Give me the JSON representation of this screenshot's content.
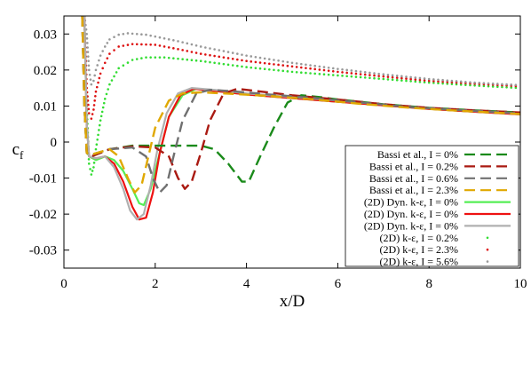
{
  "chart_data": {
    "type": "line",
    "title": "",
    "xlabel": "x/D",
    "ylabel": "c",
    "ylabel_sub": "f",
    "xlim": [
      0,
      10
    ],
    "ylim": [
      -0.035,
      0.035
    ],
    "xticks": [
      0,
      2,
      4,
      6,
      8,
      10
    ],
    "yticks": [
      -0.03,
      -0.02,
      -0.01,
      0,
      0.01,
      0.02,
      0.03
    ],
    "xtick_labels": [
      "0",
      "2",
      "4",
      "6",
      "8",
      "10"
    ],
    "ytick_labels": [
      "-0.03",
      "-0.02",
      "-0.01",
      "0",
      "0.01",
      "0.02",
      "0.03"
    ],
    "grid": false,
    "legend_position": "bottom-right",
    "series": [
      {
        "label": "Bassi et al.,    I = 0%",
        "color": "#1a8a1a",
        "style": "dashed",
        "points": [
          [
            0.4,
            0.035
          ],
          [
            0.45,
            0.01
          ],
          [
            0.5,
            -0.003
          ],
          [
            0.6,
            -0.004
          ],
          [
            1.0,
            -0.002
          ],
          [
            1.5,
            -0.001
          ],
          [
            2.0,
            -0.001
          ],
          [
            2.5,
            -0.001
          ],
          [
            3.0,
            -0.001
          ],
          [
            3.3,
            -0.002
          ],
          [
            3.6,
            -0.006
          ],
          [
            3.9,
            -0.011
          ],
          [
            4.05,
            -0.011
          ],
          [
            4.3,
            -0.004
          ],
          [
            4.6,
            0.004
          ],
          [
            4.9,
            0.011
          ],
          [
            5.2,
            0.013
          ],
          [
            5.6,
            0.0125
          ],
          [
            6,
            0.0118
          ],
          [
            7,
            0.0105
          ],
          [
            8,
            0.0095
          ],
          [
            9,
            0.0088
          ],
          [
            10,
            0.0082
          ]
        ]
      },
      {
        "label": "Bassi et al.,    I = 0.2%",
        "color": "#aa1a12",
        "style": "dashed",
        "points": [
          [
            0.4,
            0.035
          ],
          [
            0.45,
            0.01
          ],
          [
            0.5,
            -0.003
          ],
          [
            0.6,
            -0.004
          ],
          [
            1.0,
            -0.002
          ],
          [
            1.5,
            -0.0012
          ],
          [
            2.0,
            -0.0015
          ],
          [
            2.3,
            -0.004
          ],
          [
            2.5,
            -0.01
          ],
          [
            2.65,
            -0.013
          ],
          [
            2.8,
            -0.011
          ],
          [
            3.0,
            -0.003
          ],
          [
            3.2,
            0.006
          ],
          [
            3.5,
            0.0135
          ],
          [
            3.8,
            0.0148
          ],
          [
            4.2,
            0.0142
          ],
          [
            5,
            0.013
          ],
          [
            6,
            0.0118
          ],
          [
            7,
            0.0105
          ],
          [
            8,
            0.0095
          ],
          [
            9,
            0.0088
          ],
          [
            10,
            0.0082
          ]
        ]
      },
      {
        "label": "Bassi et al.,    I = 0.6%",
        "color": "#707070",
        "style": "dashed",
        "points": [
          [
            0.4,
            0.035
          ],
          [
            0.45,
            0.01
          ],
          [
            0.5,
            -0.003
          ],
          [
            0.6,
            -0.0035
          ],
          [
            1.0,
            -0.002
          ],
          [
            1.5,
            -0.0015
          ],
          [
            1.8,
            -0.004
          ],
          [
            1.95,
            -0.01
          ],
          [
            2.1,
            -0.014
          ],
          [
            2.25,
            -0.012
          ],
          [
            2.4,
            -0.004
          ],
          [
            2.6,
            0.006
          ],
          [
            2.9,
            0.0135
          ],
          [
            3.2,
            0.0145
          ],
          [
            3.6,
            0.0142
          ],
          [
            4.5,
            0.0132
          ],
          [
            5.5,
            0.0122
          ],
          [
            6.5,
            0.011
          ],
          [
            7.5,
            0.0098
          ],
          [
            8.5,
            0.009
          ],
          [
            10,
            0.008
          ]
        ]
      },
      {
        "label": "Bassi et al.,    I = 2.3%",
        "color": "#e0a800",
        "style": "dashed",
        "points": [
          [
            0.4,
            0.035
          ],
          [
            0.45,
            0.01
          ],
          [
            0.5,
            -0.003
          ],
          [
            0.6,
            -0.0035
          ],
          [
            1.0,
            -0.002
          ],
          [
            1.2,
            -0.004
          ],
          [
            1.4,
            -0.01
          ],
          [
            1.55,
            -0.014
          ],
          [
            1.7,
            -0.012
          ],
          [
            1.85,
            -0.004
          ],
          [
            2.0,
            0.004
          ],
          [
            2.3,
            0.0115
          ],
          [
            2.6,
            0.0135
          ],
          [
            3.0,
            0.0138
          ],
          [
            3.5,
            0.0135
          ],
          [
            4.5,
            0.0128
          ],
          [
            5.5,
            0.0118
          ],
          [
            6.5,
            0.0106
          ],
          [
            7.5,
            0.0096
          ],
          [
            8.5,
            0.0088
          ],
          [
            10,
            0.0078
          ]
        ]
      },
      {
        "label": "(2D) Dyn. k-ε,   I = 0%",
        "color": "#55ee55",
        "style": "solid",
        "points": [
          [
            0.45,
            0.035
          ],
          [
            0.5,
            0.005
          ],
          [
            0.55,
            -0.004
          ],
          [
            0.7,
            -0.005
          ],
          [
            0.9,
            -0.004
          ],
          [
            1.1,
            -0.005
          ],
          [
            1.3,
            -0.008
          ],
          [
            1.5,
            -0.013
          ],
          [
            1.65,
            -0.017
          ],
          [
            1.75,
            -0.0175
          ],
          [
            1.9,
            -0.013
          ],
          [
            2.1,
            -0.003
          ],
          [
            2.3,
            0.007
          ],
          [
            2.6,
            0.013
          ],
          [
            2.9,
            0.0148
          ],
          [
            3.3,
            0.0142
          ],
          [
            4,
            0.0132
          ],
          [
            5,
            0.0122
          ],
          [
            6,
            0.0112
          ],
          [
            7,
            0.0102
          ],
          [
            8,
            0.0092
          ],
          [
            9,
            0.0084
          ],
          [
            10,
            0.0077
          ]
        ]
      },
      {
        "label": "(2D) Dyn. k-ε,   I = 0%",
        "color": "#ee1111",
        "style": "solid",
        "points": [
          [
            0.45,
            0.035
          ],
          [
            0.5,
            0.005
          ],
          [
            0.55,
            -0.004
          ],
          [
            0.7,
            -0.0045
          ],
          [
            0.9,
            -0.004
          ],
          [
            1.1,
            -0.006
          ],
          [
            1.3,
            -0.011
          ],
          [
            1.5,
            -0.018
          ],
          [
            1.65,
            -0.0215
          ],
          [
            1.8,
            -0.021
          ],
          [
            1.95,
            -0.014
          ],
          [
            2.1,
            -0.003
          ],
          [
            2.3,
            0.007
          ],
          [
            2.55,
            0.013
          ],
          [
            2.85,
            0.0148
          ],
          [
            3.3,
            0.0142
          ],
          [
            4,
            0.0132
          ],
          [
            5,
            0.0122
          ],
          [
            6,
            0.0112
          ],
          [
            7,
            0.0102
          ],
          [
            8,
            0.0092
          ],
          [
            9,
            0.0084
          ],
          [
            10,
            0.0077
          ]
        ]
      },
      {
        "label": "(2D) Dyn. k-ε,   I = 0%",
        "color": "#b0b0b0",
        "style": "solid",
        "points": [
          [
            0.45,
            0.035
          ],
          [
            0.5,
            0.005
          ],
          [
            0.55,
            -0.004
          ],
          [
            0.7,
            -0.0045
          ],
          [
            0.9,
            -0.004
          ],
          [
            1.1,
            -0.007
          ],
          [
            1.3,
            -0.013
          ],
          [
            1.45,
            -0.019
          ],
          [
            1.6,
            -0.0215
          ],
          [
            1.75,
            -0.02
          ],
          [
            1.9,
            -0.012
          ],
          [
            2.05,
            -0.002
          ],
          [
            2.25,
            0.008
          ],
          [
            2.5,
            0.0135
          ],
          [
            2.8,
            0.015
          ],
          [
            3.3,
            0.0145
          ],
          [
            4,
            0.0135
          ],
          [
            5,
            0.0125
          ],
          [
            6,
            0.0115
          ],
          [
            7,
            0.0104
          ],
          [
            8,
            0.0094
          ],
          [
            9,
            0.0086
          ],
          [
            10,
            0.0079
          ]
        ]
      },
      {
        "label": "(2D) k-ε,   I = 0.2%",
        "color": "#33dd33",
        "style": "dotted",
        "points": [
          [
            0.45,
            0.035
          ],
          [
            0.5,
            0.01
          ],
          [
            0.55,
            -0.006
          ],
          [
            0.6,
            -0.009
          ],
          [
            0.65,
            -0.007
          ],
          [
            0.7,
            -0.002
          ],
          [
            0.8,
            0.006
          ],
          [
            0.9,
            0.012
          ],
          [
            1.0,
            0.016
          ],
          [
            1.2,
            0.0205
          ],
          [
            1.5,
            0.0228
          ],
          [
            1.8,
            0.0235
          ],
          [
            2.2,
            0.0235
          ],
          [
            3,
            0.0225
          ],
          [
            4,
            0.0208
          ],
          [
            5,
            0.0195
          ],
          [
            6,
            0.0185
          ],
          [
            7,
            0.0175
          ],
          [
            8,
            0.0165
          ],
          [
            9,
            0.0157
          ],
          [
            10,
            0.015
          ]
        ]
      },
      {
        "label": "(2D) k-ε,   I = 2.3%",
        "color": "#dd1111",
        "style": "dotted",
        "points": [
          [
            0.45,
            0.035
          ],
          [
            0.5,
            0.015
          ],
          [
            0.55,
            0.008
          ],
          [
            0.6,
            0.0065
          ],
          [
            0.65,
            0.009
          ],
          [
            0.7,
            0.014
          ],
          [
            0.8,
            0.019
          ],
          [
            0.9,
            0.022
          ],
          [
            1.0,
            0.0245
          ],
          [
            1.2,
            0.0265
          ],
          [
            1.5,
            0.0272
          ],
          [
            2.0,
            0.027
          ],
          [
            2.5,
            0.0258
          ],
          [
            3,
            0.0245
          ],
          [
            4,
            0.0225
          ],
          [
            5,
            0.021
          ],
          [
            6,
            0.0195
          ],
          [
            7,
            0.0182
          ],
          [
            8,
            0.017
          ],
          [
            9,
            0.0162
          ],
          [
            10,
            0.0155
          ]
        ]
      },
      {
        "label": "(2D) k-ε,   I = 5.6%",
        "color": "#999999",
        "style": "dotted",
        "points": [
          [
            0.45,
            0.035
          ],
          [
            0.5,
            0.03
          ],
          [
            0.55,
            0.02
          ],
          [
            0.6,
            0.016
          ],
          [
            0.65,
            0.017
          ],
          [
            0.7,
            0.02
          ],
          [
            0.8,
            0.024
          ],
          [
            0.9,
            0.0265
          ],
          [
            1.0,
            0.0285
          ],
          [
            1.2,
            0.0298
          ],
          [
            1.4,
            0.0302
          ],
          [
            1.8,
            0.0298
          ],
          [
            2.5,
            0.028
          ],
          [
            3,
            0.0265
          ],
          [
            4,
            0.024
          ],
          [
            5,
            0.022
          ],
          [
            6,
            0.0203
          ],
          [
            7,
            0.0188
          ],
          [
            8,
            0.0175
          ],
          [
            9,
            0.0165
          ],
          [
            10,
            0.0158
          ]
        ]
      }
    ]
  }
}
